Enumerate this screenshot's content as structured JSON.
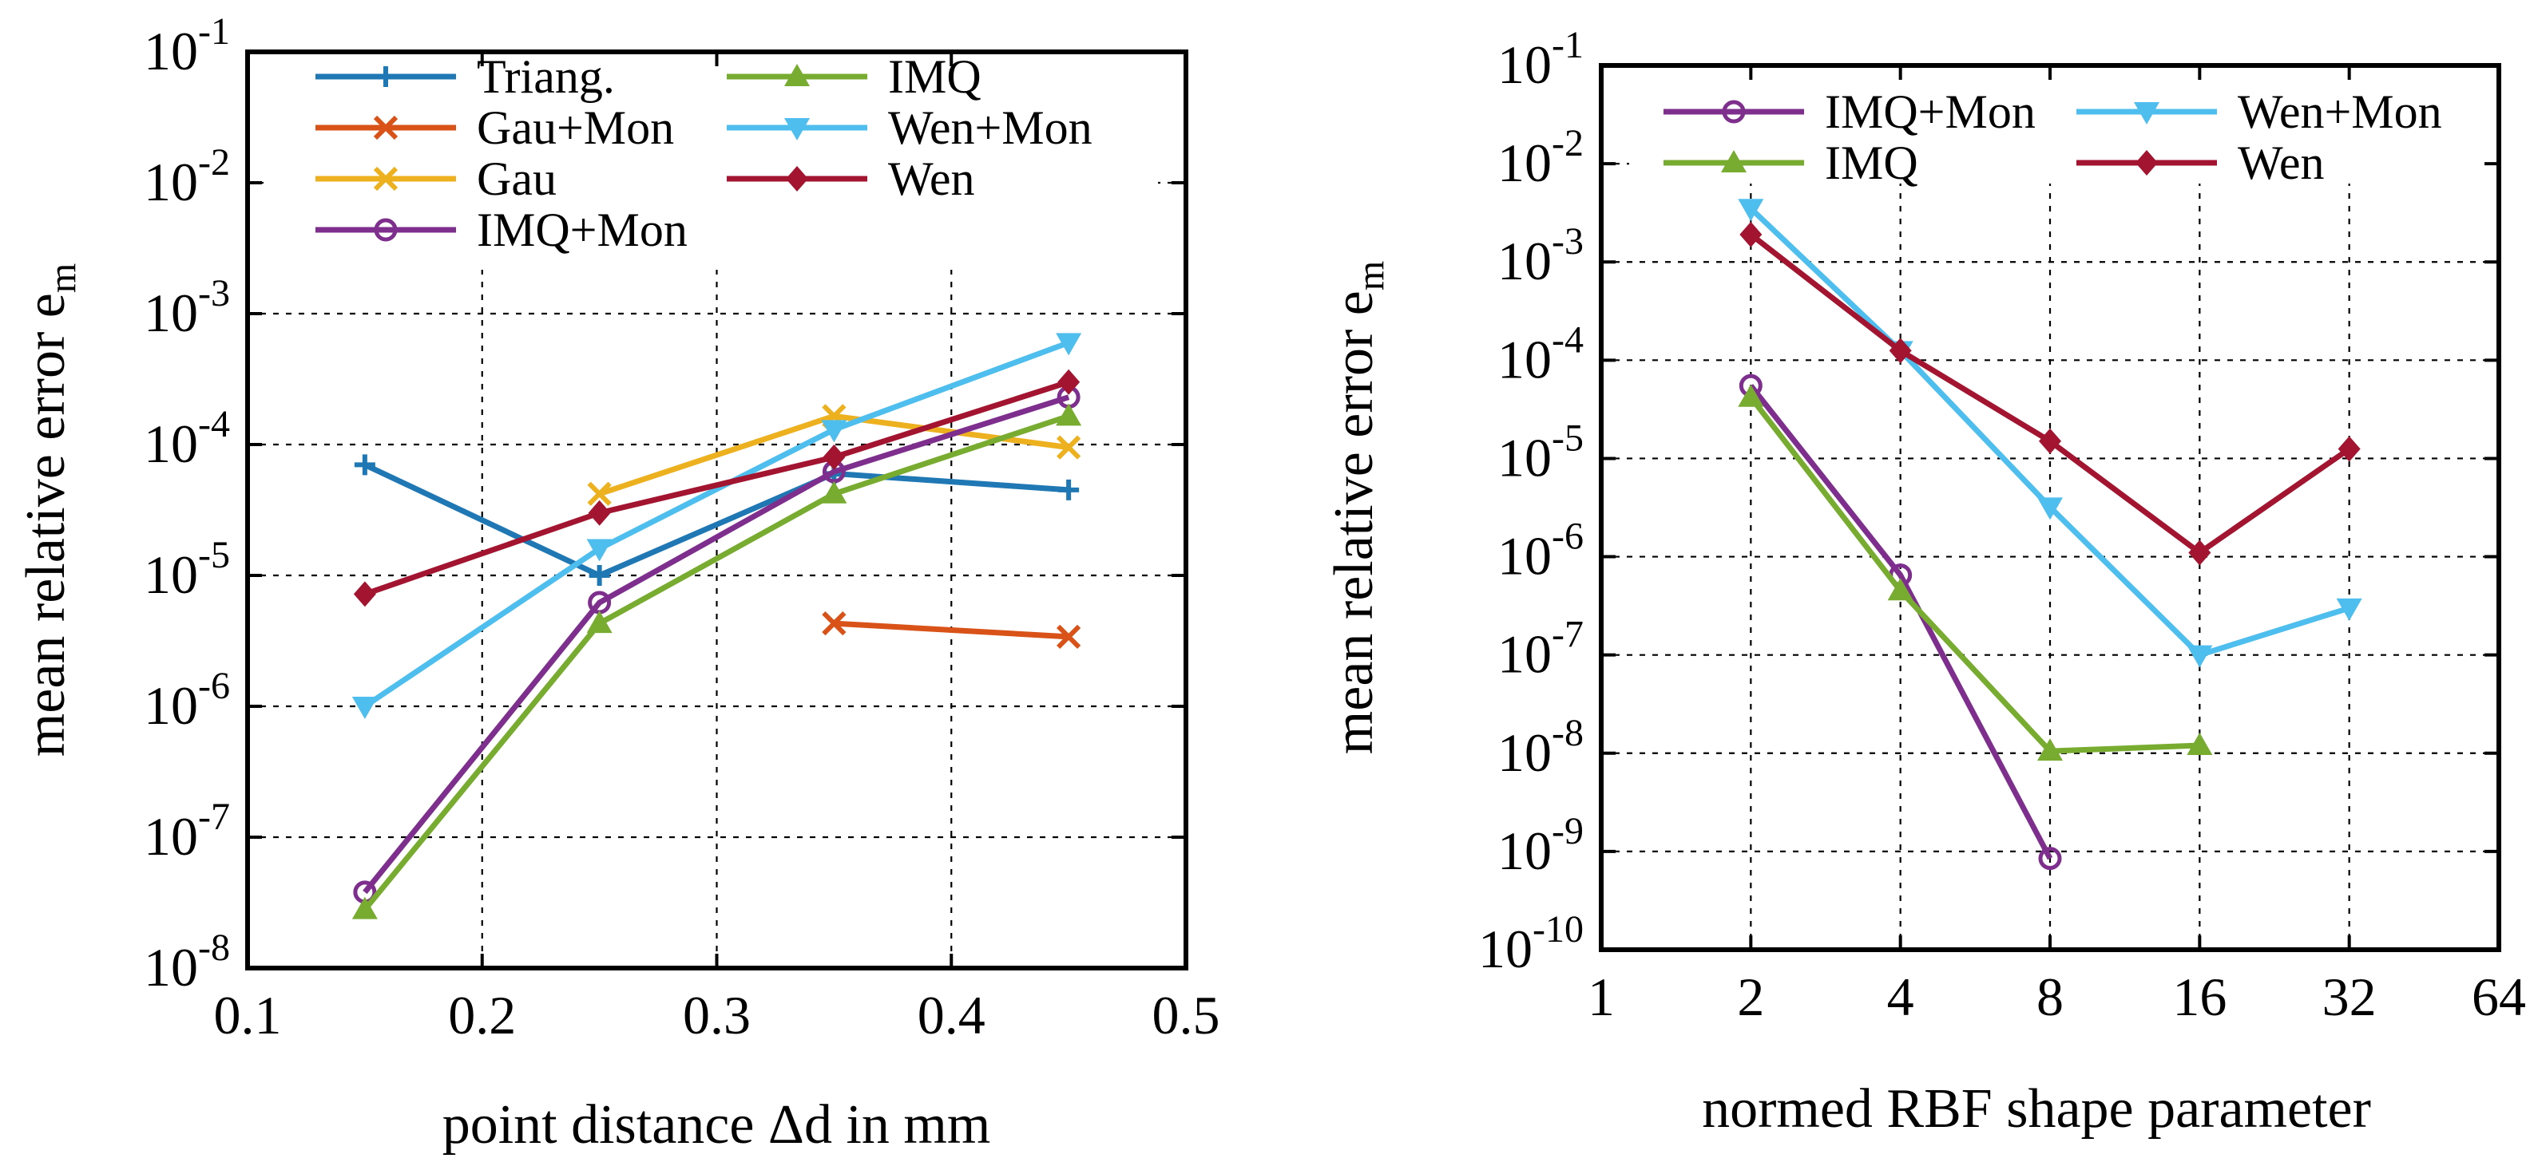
{
  "chart_data": [
    {
      "type": "line",
      "title": "",
      "xlabel": "point distance Δd in mm",
      "ylabel": "mean relative error e_m",
      "yscale": "log",
      "xlim": [
        0.1,
        0.5
      ],
      "ylim_exponents": [
        -8,
        -1
      ],
      "grid": true,
      "legend_position": "top",
      "legend_columns": 2,
      "x_ticks": [
        "0.1",
        "0.2",
        "0.3",
        "0.4",
        "0.5"
      ],
      "y_ticks": [
        {
          "base": "10",
          "exp": "-8"
        },
        {
          "base": "10",
          "exp": "-7"
        },
        {
          "base": "10",
          "exp": "-6"
        },
        {
          "base": "10",
          "exp": "-5"
        },
        {
          "base": "10",
          "exp": "-4"
        },
        {
          "base": "10",
          "exp": "-3"
        },
        {
          "base": "10",
          "exp": "-2"
        },
        {
          "base": "10",
          "exp": "-1"
        }
      ],
      "series": [
        {
          "name": "Triang.",
          "color": "#1f77b4",
          "marker": "plus",
          "x": [
            0.15,
            0.25,
            0.35,
            0.45
          ],
          "values": [
            7e-05,
            1e-05,
            6e-05,
            4.5e-05
          ]
        },
        {
          "name": "Gau+Mon",
          "color": "#d95319",
          "marker": "x",
          "x": [
            0.35,
            0.45
          ],
          "values": [
            4.3e-06,
            3.4e-06
          ]
        },
        {
          "name": "Gau",
          "color": "#edb120",
          "marker": "x",
          "x": [
            0.25,
            0.35,
            0.45
          ],
          "values": [
            4.2e-05,
            0.000165,
            9.5e-05
          ]
        },
        {
          "name": "IMQ+Mon",
          "color": "#7e2f8e",
          "marker": "circle",
          "x": [
            0.15,
            0.25,
            0.35,
            0.45
          ],
          "values": [
            3.8e-08,
            6.2e-06,
            6.2e-05,
            0.00023
          ]
        },
        {
          "name": "IMQ",
          "color": "#77ac30",
          "marker": "triangle-up",
          "x": [
            0.15,
            0.25,
            0.35,
            0.45
          ],
          "values": [
            2.8e-08,
            4.3e-06,
            4.2e-05,
            0.000165
          ]
        },
        {
          "name": "Wen+Mon",
          "color": "#4dbeee",
          "marker": "triangle-down",
          "x": [
            0.15,
            0.25,
            0.35,
            0.45
          ],
          "values": [
            1e-06,
            1.6e-05,
            0.00013,
            0.0006
          ]
        },
        {
          "name": "Wen",
          "color": "#a2142f",
          "marker": "diamond",
          "x": [
            0.15,
            0.25,
            0.35,
            0.45
          ],
          "values": [
            7.2e-06,
            3e-05,
            8e-05,
            0.0003
          ]
        }
      ]
    },
    {
      "type": "line",
      "title": "",
      "xlabel": "normed RBF shape parameter",
      "ylabel": "mean relative error e_m",
      "xscale": "log2",
      "yscale": "log",
      "xlim": [
        1,
        64
      ],
      "ylim_exponents": [
        -10,
        -1
      ],
      "grid": true,
      "legend_position": "top",
      "legend_columns": 2,
      "x_ticks": [
        "1",
        "2",
        "4",
        "8",
        "16",
        "32",
        "64"
      ],
      "y_ticks": [
        {
          "base": "10",
          "exp": "-10"
        },
        {
          "base": "10",
          "exp": "-9"
        },
        {
          "base": "10",
          "exp": "-8"
        },
        {
          "base": "10",
          "exp": "-7"
        },
        {
          "base": "10",
          "exp": "-6"
        },
        {
          "base": "10",
          "exp": "-5"
        },
        {
          "base": "10",
          "exp": "-4"
        },
        {
          "base": "10",
          "exp": "-3"
        },
        {
          "base": "10",
          "exp": "-2"
        },
        {
          "base": "10",
          "exp": "-1"
        }
      ],
      "series": [
        {
          "name": "IMQ+Mon",
          "color": "#7e2f8e",
          "marker": "circle",
          "x": [
            2,
            4,
            8
          ],
          "values": [
            5.5e-05,
            6.5e-07,
            8.5e-10
          ]
        },
        {
          "name": "IMQ",
          "color": "#77ac30",
          "marker": "triangle-up",
          "x": [
            2,
            4,
            8,
            16
          ],
          "values": [
            4.2e-05,
            4.5e-07,
            1.05e-08,
            1.2e-08
          ]
        },
        {
          "name": "Wen+Mon",
          "color": "#4dbeee",
          "marker": "triangle-down",
          "x": [
            2,
            4,
            8,
            16,
            32
          ],
          "values": [
            0.0035,
            0.000125,
            3.2e-06,
            1e-07,
            3e-07
          ]
        },
        {
          "name": "Wen",
          "color": "#a2142f",
          "marker": "diamond",
          "x": [
            2,
            4,
            8,
            16,
            32
          ],
          "values": [
            0.0019,
            0.000125,
            1.5e-05,
            1.1e-06,
            1.25e-05
          ]
        }
      ]
    }
  ]
}
